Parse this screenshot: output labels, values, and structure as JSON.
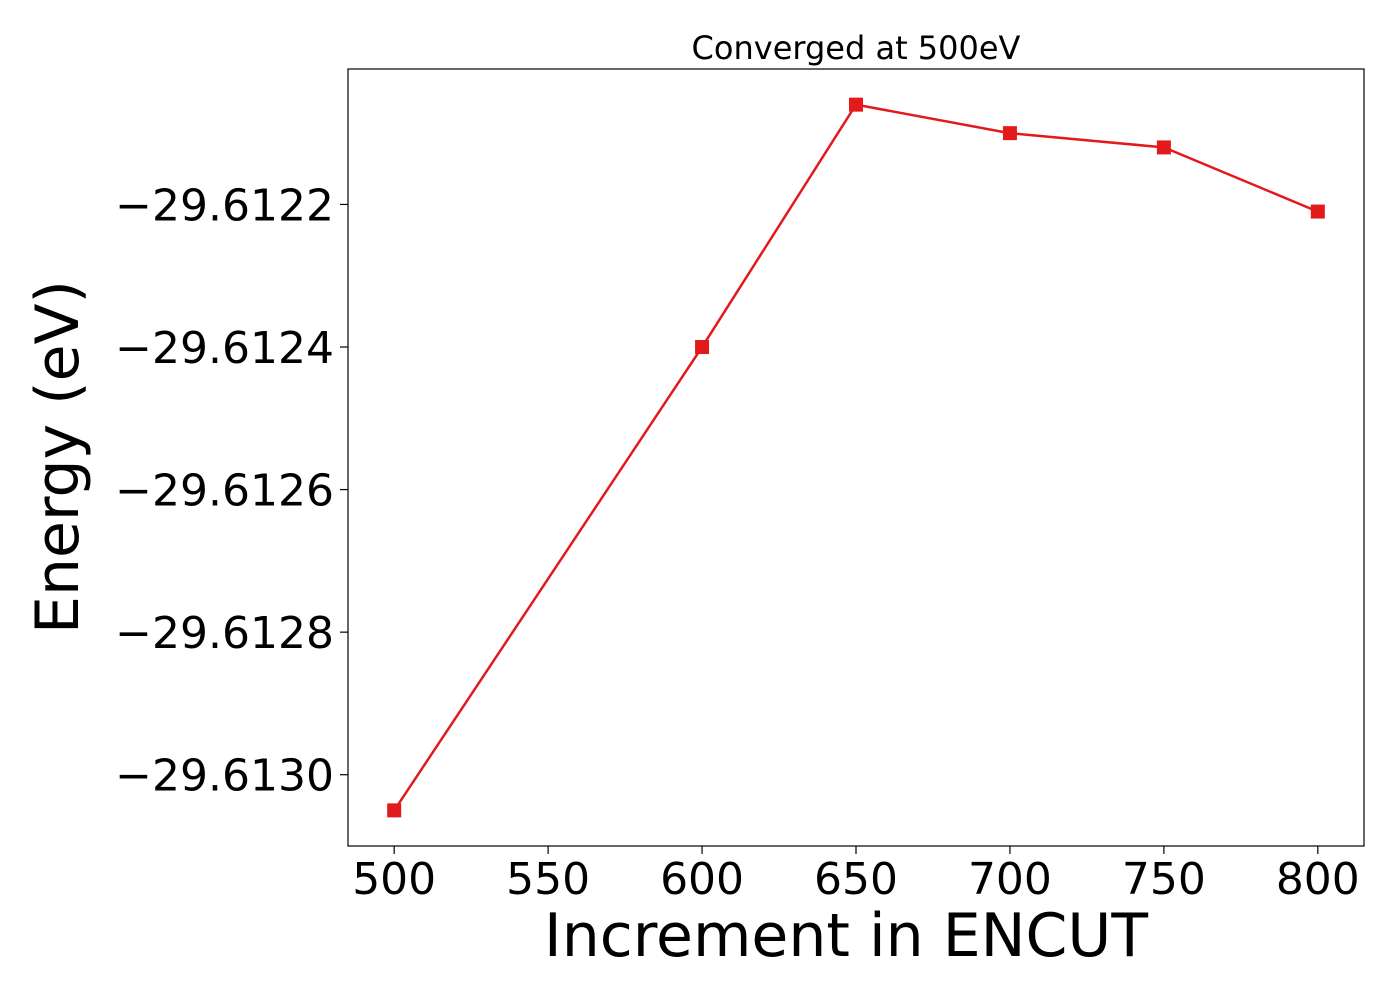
{
  "chart_data": {
    "type": "line",
    "title": "Converged at 500eV",
    "xlabel": "Increment in ENCUT",
    "ylabel": "Energy (eV)",
    "x": [
      500,
      600,
      650,
      700,
      750,
      800
    ],
    "series": [
      {
        "values": [
          -29.61305,
          -29.6124,
          -29.61206,
          -29.6121,
          -29.61212,
          -29.61221
        ],
        "color": "#e31a1c",
        "marker": "square"
      }
    ],
    "xlim": [
      485,
      815
    ],
    "ylim": [
      -29.6131,
      -29.61201
    ],
    "xticks": [
      500,
      550,
      600,
      650,
      700,
      750,
      800
    ],
    "xtick_labels": [
      "500",
      "550",
      "600",
      "650",
      "700",
      "750",
      "800"
    ],
    "yticks": [
      -29.6122,
      -29.6124,
      -29.6126,
      -29.6128,
      -29.613
    ],
    "ytick_labels": [
      "−29.6122",
      "−29.6124",
      "−29.6126",
      "−29.6128",
      "−29.6130"
    ],
    "grid": false,
    "legend": "none"
  }
}
